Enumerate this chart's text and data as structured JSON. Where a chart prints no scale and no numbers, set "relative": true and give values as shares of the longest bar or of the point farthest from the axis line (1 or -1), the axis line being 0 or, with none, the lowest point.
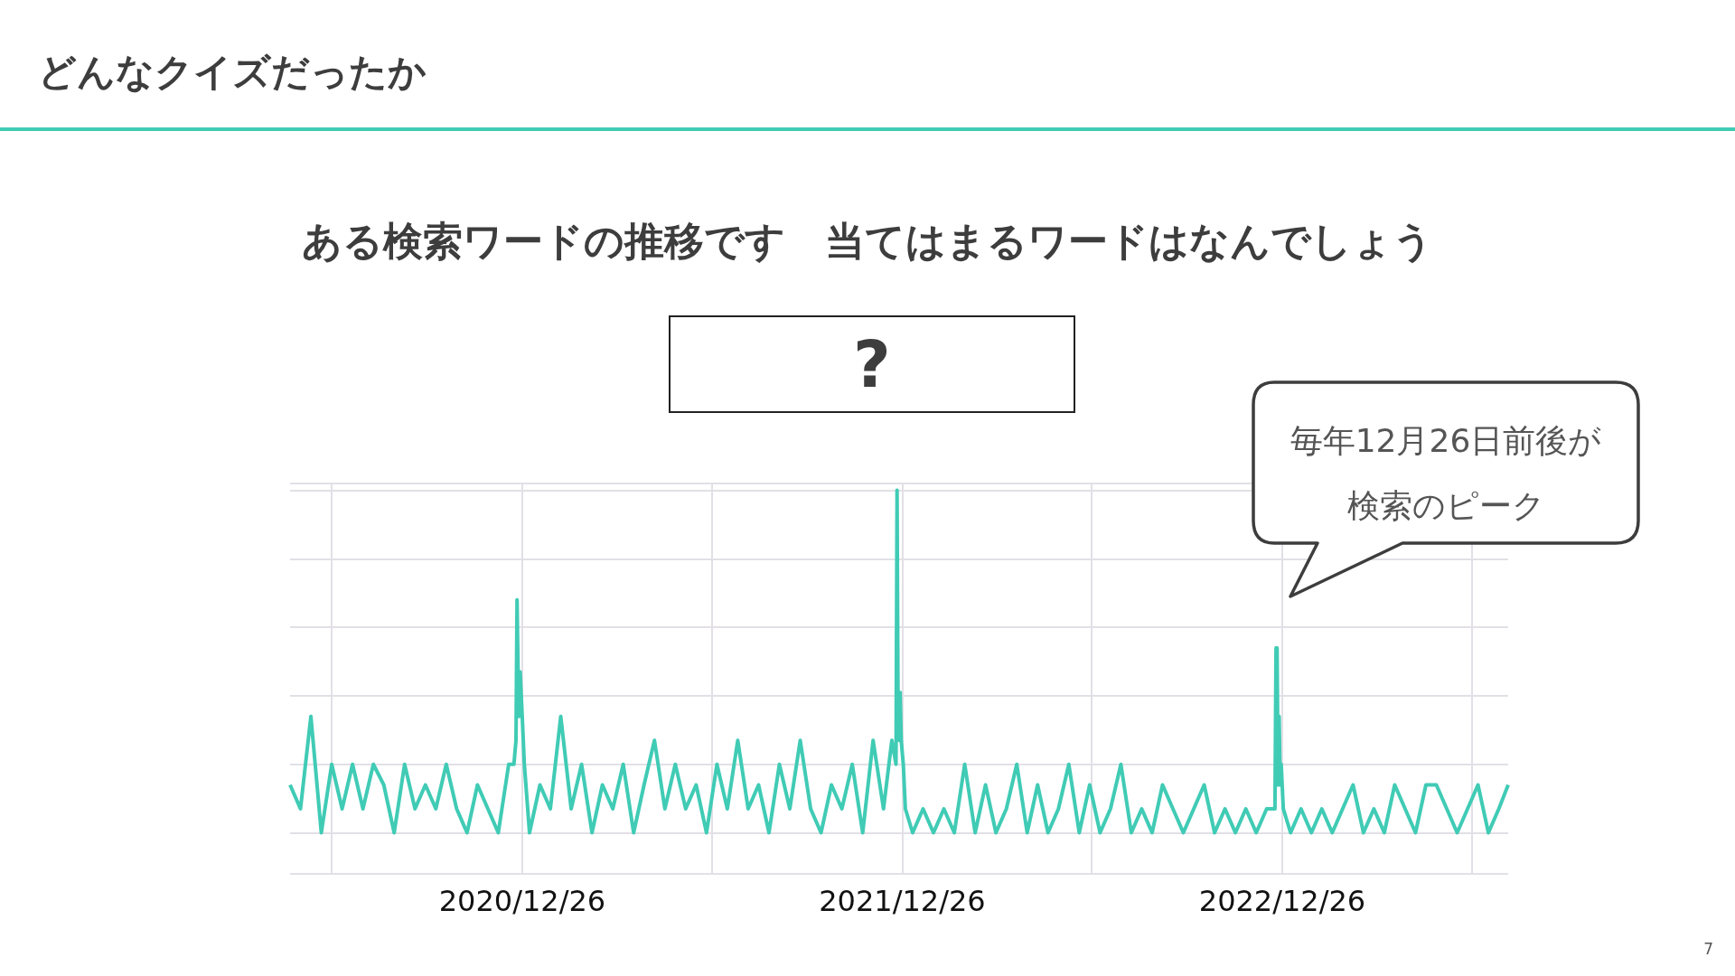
{
  "chart_data": {
    "type": "line",
    "title": "どんなクイズだったか",
    "subtitle": "ある検索ワードの推移です　当てはまるワードはなんでしょう",
    "annotations": [
      "?",
      "毎年12月26日前後が検索のピーク",
      "7"
    ],
    "relative": true,
    "grid": true,
    "xlim": [
      "2020-05-17",
      "2023-07-31"
    ],
    "xticks": [
      {
        "value": "2020-06-26",
        "label": null
      },
      {
        "value": "2020-12-26",
        "label": "2020/12/26"
      },
      {
        "value": "2021-06-26",
        "label": null
      },
      {
        "value": "2021-12-26",
        "label": "2021/12/26"
      },
      {
        "value": "2022-06-26",
        "label": null
      },
      {
        "value": "2022-12-26",
        "label": "2022/12/26"
      },
      {
        "value": "2023-06-26",
        "label": null
      }
    ],
    "x": [
      "2020-05-17",
      "2020-05-27",
      "2020-06-06",
      "2020-06-16",
      "2020-06-26",
      "2020-07-06",
      "2020-07-16",
      "2020-07-26",
      "2020-08-05",
      "2020-08-15",
      "2020-08-25",
      "2020-09-04",
      "2020-09-14",
      "2020-09-24",
      "2020-10-04",
      "2020-10-14",
      "2020-10-24",
      "2020-11-03",
      "2020-11-13",
      "2020-11-23",
      "2020-12-03",
      "2020-12-13",
      "2020-12-18",
      "2020-12-20",
      "2020-12-21",
      "2020-12-22",
      "2020-12-23",
      "2020-12-24",
      "2020-12-26",
      "2020-12-28",
      "2021-01-02",
      "2021-01-12",
      "2021-01-22",
      "2021-02-01",
      "2021-02-11",
      "2021-02-21",
      "2021-03-03",
      "2021-03-13",
      "2021-03-23",
      "2021-04-02",
      "2021-04-12",
      "2021-04-22",
      "2021-05-02",
      "2021-05-12",
      "2021-05-22",
      "2021-06-01",
      "2021-06-11",
      "2021-06-21",
      "2021-07-01",
      "2021-07-11",
      "2021-07-21",
      "2021-07-31",
      "2021-08-10",
      "2021-08-20",
      "2021-08-30",
      "2021-09-09",
      "2021-09-19",
      "2021-09-29",
      "2021-10-09",
      "2021-10-19",
      "2021-10-29",
      "2021-11-08",
      "2021-11-18",
      "2021-11-28",
      "2021-12-08",
      "2021-12-16",
      "2021-12-20",
      "2021-12-21",
      "2021-12-22",
      "2021-12-23",
      "2021-12-24",
      "2021-12-25",
      "2021-12-27",
      "2021-12-29",
      "2022-01-05",
      "2022-01-15",
      "2022-01-25",
      "2022-02-04",
      "2022-02-14",
      "2022-02-24",
      "2022-03-06",
      "2022-03-16",
      "2022-03-26",
      "2022-04-05",
      "2022-04-15",
      "2022-04-25",
      "2022-05-05",
      "2022-05-15",
      "2022-05-25",
      "2022-06-04",
      "2022-06-14",
      "2022-06-24",
      "2022-07-04",
      "2022-07-14",
      "2022-07-24",
      "2022-08-03",
      "2022-08-13",
      "2022-08-23",
      "2022-09-02",
      "2022-09-12",
      "2022-09-22",
      "2022-10-02",
      "2022-10-12",
      "2022-10-22",
      "2022-11-01",
      "2022-11-11",
      "2022-11-21",
      "2022-12-01",
      "2022-12-11",
      "2022-12-19",
      "2022-12-20",
      "2022-12-21",
      "2022-12-22",
      "2022-12-23",
      "2022-12-24",
      "2022-12-25",
      "2022-12-27",
      "2023-01-03",
      "2023-01-13",
      "2023-01-23",
      "2023-02-02",
      "2023-02-12",
      "2023-02-22",
      "2023-03-04",
      "2023-03-14",
      "2023-03-24",
      "2023-04-03",
      "2023-04-13",
      "2023-04-23",
      "2023-05-03",
      "2023-05-13",
      "2023-05-23",
      "2023-06-02",
      "2023-06-12",
      "2023-06-22",
      "2023-07-02",
      "2023-07-12",
      "2023-07-22",
      "2023-07-31"
    ],
    "series": [
      {
        "color": "#40cbb5",
        "values": [
          0.14,
          0.07,
          0.34,
          0,
          0.2,
          0.07,
          0.2,
          0.07,
          0.2,
          0.14,
          0,
          0.2,
          0.07,
          0.14,
          0.07,
          0.2,
          0.07,
          0,
          0.14,
          0.07,
          0,
          0.2,
          0.2,
          0.27,
          0.68,
          0.47,
          0.34,
          0.47,
          0.34,
          0.2,
          0,
          0.14,
          0.07,
          0.34,
          0.07,
          0.2,
          0,
          0.14,
          0.07,
          0.2,
          0,
          0.14,
          0.27,
          0.07,
          0.2,
          0.07,
          0.14,
          0,
          0.2,
          0.07,
          0.27,
          0.07,
          0.14,
          0,
          0.2,
          0.07,
          0.27,
          0.07,
          0,
          0.14,
          0.07,
          0.2,
          0,
          0.27,
          0.07,
          0.27,
          0.2,
          1,
          0.34,
          0.27,
          0.41,
          0.27,
          0.2,
          0.07,
          0,
          0.07,
          0,
          0.07,
          0,
          0.2,
          0,
          0.14,
          0,
          0.07,
          0.2,
          0,
          0.14,
          0,
          0.07,
          0.2,
          0,
          0.14,
          0,
          0.07,
          0.2,
          0,
          0.07,
          0,
          0.14,
          0.07,
          0,
          0.07,
          0.14,
          0,
          0.07,
          0,
          0.07,
          0,
          0.07,
          0.07,
          0.54,
          0.54,
          0.14,
          0.34,
          0.14,
          0.2,
          0.07,
          0,
          0.07,
          0,
          0.07,
          0,
          0.07,
          0.14,
          0,
          0.07,
          0,
          0.14,
          0.07,
          0,
          0.14,
          0.14,
          0.07,
          0,
          0.07,
          0.14,
          0,
          0.07,
          0.14
        ]
      }
    ]
  }
}
